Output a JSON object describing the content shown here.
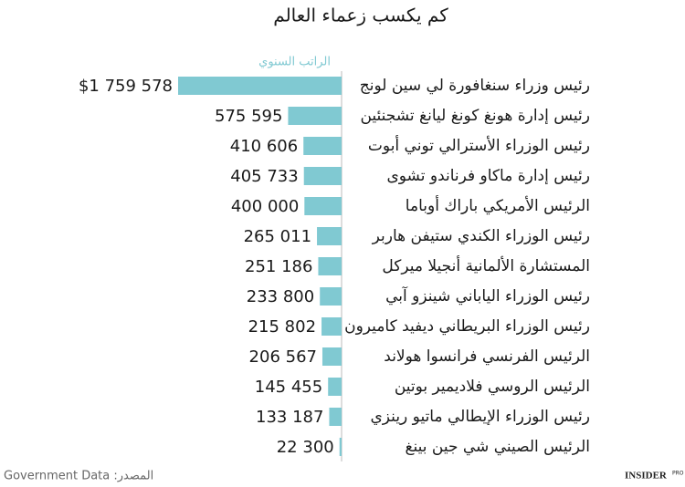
{
  "chart_data": {
    "type": "bar",
    "orientation": "horizontal",
    "title": "كم يكسب زعماء العالم",
    "categories": [
      "رئيس وزراء سنغافورة لي سين لونج",
      "رئيس إدارة هونغ كونغ ليانغ تشجنئين",
      "رئيس الوزراء الأسترالي توني أبوت",
      "رئيس إدارة ماكاو فرناندو تشوى",
      "الرئيس الأمريكي باراك أوباما",
      "رئيس الوزراء الكندي ستيفن هاربر",
      "المستشارة الألمانية أنجيلا ميركل",
      "رئيس الوزراء الياباني شينزو آبي",
      "رئيس الوزراء البريطاني ديفيد كاميرون",
      "الرئيس الفرنسي فرانسوا هولاند",
      "الرئيس الروسي فلاديمير بوتين",
      "رئيس الوزراء الإيطالي ماتيو رينزي",
      "الرئيس الصيني شي جين بينغ"
    ],
    "series": [
      {
        "name": "الراتب السنوي",
        "color": "#80c9d2",
        "values": [
          1759578,
          575595,
          410606,
          405733,
          400000,
          265011,
          251186,
          233800,
          215802,
          206567,
          145455,
          133187,
          22300
        ],
        "value_labels": [
          "$1 759 578",
          "575 595",
          "410 606",
          "405 733",
          "400 000",
          "265 011",
          "251 186",
          "233 800",
          "215 802",
          "206 567",
          "145 455",
          "133 187",
          "22 300"
        ]
      }
    ],
    "xlim": [
      0,
      1759578
    ],
    "source": "المصدر: Government Data",
    "logo": "INSIDER",
    "logo_suffix": "PRO"
  }
}
